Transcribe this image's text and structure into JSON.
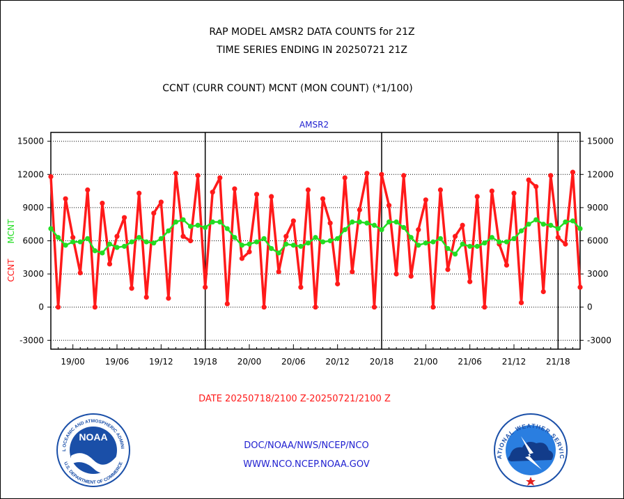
{
  "header": {
    "line1": "RAP MODEL AMSR2 DATA COUNTS for 21Z",
    "line2": "TIME SERIES ENDING IN 20250721 21Z",
    "line3": "CCNT (CURR COUNT) MCNT (MON COUNT) (*1/100)"
  },
  "footer": {
    "date_range": "DATE 20250718/2100 Z-20250721/2100 Z",
    "org": "DOC/NOAA/NWS/NCEP/NCO",
    "url": "WWW.NCO.NCEP.NOAA.GOV"
  },
  "logos": {
    "noaa_text": "NOAA",
    "noaa_ring_top": "NATIONAL OCEANIC AND ATMOSPHERIC ADMINISTRATION",
    "noaa_ring_bottom": "U.S. DEPARTMENT OF COMMERCE",
    "nws_ring": "NATIONAL WEATHER SERVICE"
  },
  "colors": {
    "ccnt": "#ff1a1a",
    "mcnt": "#22dd22",
    "axis_title": "#1f1fd0",
    "noaa_blue": "#1a4fa8",
    "nws_blue": "#2a7ee0"
  },
  "chart_data": {
    "type": "line",
    "title": "AMSR2",
    "ylabel_left_red": "CCNT",
    "ylabel_left_green": "MCNT",
    "ylim": [
      -3800,
      15800
    ],
    "yticks": [
      -3000,
      0,
      3000,
      6000,
      9000,
      12000,
      15000
    ],
    "ytick_labels": [
      "-3000",
      "0",
      "3000",
      "6000",
      "9000",
      "12000",
      "15000"
    ],
    "xlim": [
      0,
      72
    ],
    "xticks": [
      3,
      9,
      15,
      21,
      27,
      33,
      39,
      45,
      51,
      57,
      63,
      69
    ],
    "xtick_labels": [
      "19/00",
      "19/06",
      "19/12",
      "19/18",
      "20/00",
      "20/06",
      "20/12",
      "20/18",
      "21/00",
      "21/06",
      "21/12",
      "21/18"
    ],
    "day_dividers": [
      21,
      45,
      69
    ],
    "series": [
      {
        "name": "CCNT",
        "values": [
          11800,
          0,
          9800,
          6300,
          3100,
          10600,
          0,
          9400,
          3900,
          6400,
          8100,
          1700,
          10300,
          900,
          8500,
          9500,
          800,
          12100,
          6400,
          6000,
          11900,
          1800,
          10400,
          11700,
          300,
          10700,
          4400,
          5000,
          10200,
          0,
          10000,
          3200,
          6400,
          7800,
          1800,
          10600,
          0,
          9800,
          7600,
          2100,
          11700,
          3200,
          8800,
          12100,
          0,
          12000,
          9200,
          3000,
          11900,
          2800,
          7000,
          9700,
          0,
          10600,
          3400,
          6400,
          7400,
          2300,
          10000,
          0,
          10500,
          5700,
          3800,
          10300,
          400,
          11500,
          10900,
          1400,
          11900,
          6300,
          5700,
          12200,
          1800
        ]
      },
      {
        "name": "MCNT",
        "values": [
          7100,
          6300,
          5600,
          5900,
          5900,
          6200,
          5100,
          4900,
          5700,
          5400,
          5500,
          5900,
          6300,
          5900,
          5800,
          6200,
          6900,
          7700,
          7900,
          7300,
          7400,
          7200,
          7700,
          7700,
          7100,
          6300,
          5600,
          5700,
          5900,
          6200,
          5300,
          4900,
          5700,
          5600,
          5500,
          5800,
          6300,
          5900,
          6000,
          6200,
          7000,
          7700,
          7700,
          7600,
          7400,
          7000,
          7700,
          7700,
          7200,
          6300,
          5600,
          5800,
          5900,
          6200,
          5300,
          4800,
          5700,
          5500,
          5500,
          5800,
          6300,
          5900,
          5900,
          6200,
          6900,
          7500,
          7900,
          7500,
          7400,
          7100,
          7700,
          7800,
          7100
        ]
      }
    ]
  }
}
